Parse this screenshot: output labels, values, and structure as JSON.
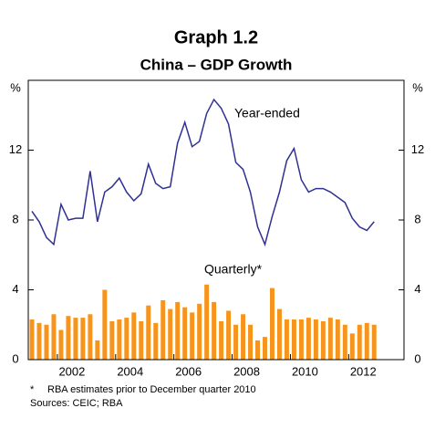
{
  "chart_data": {
    "type": "bar-line",
    "title": "Graph 1.2",
    "subtitle": "China – GDP Growth",
    "y_unit": "%",
    "xlim": [
      2001,
      2013.9
    ],
    "xticks": [
      {
        "value": 2002,
        "label": "2002"
      },
      {
        "value": 2004,
        "label": "2004"
      },
      {
        "value": 2006,
        "label": "2006"
      },
      {
        "value": 2008,
        "label": "2008"
      },
      {
        "value": 2010,
        "label": "2010"
      },
      {
        "value": 2012,
        "label": "2012"
      }
    ],
    "ylim": [
      0,
      16
    ],
    "yticks": [
      0,
      4,
      8,
      12
    ],
    "x": [
      2001.125,
      2001.375,
      2001.625,
      2001.875,
      2002.125,
      2002.375,
      2002.625,
      2002.875,
      2003.125,
      2003.375,
      2003.625,
      2003.875,
      2004.125,
      2004.375,
      2004.625,
      2004.875,
      2005.125,
      2005.375,
      2005.625,
      2005.875,
      2006.125,
      2006.375,
      2006.625,
      2006.875,
      2007.125,
      2007.375,
      2007.625,
      2007.875,
      2008.125,
      2008.375,
      2008.625,
      2008.875,
      2009.125,
      2009.375,
      2009.625,
      2009.875,
      2010.125,
      2010.375,
      2010.625,
      2010.875,
      2011.125,
      2011.375,
      2011.625,
      2011.875,
      2012.125,
      2012.375,
      2012.625,
      2012.875
    ],
    "series": [
      {
        "name": "Year-ended",
        "kind": "line",
        "color": "#2e3192",
        "values": [
          8.5,
          7.9,
          7.0,
          6.6,
          8.9,
          8.0,
          8.1,
          8.1,
          10.8,
          7.9,
          9.6,
          9.9,
          10.4,
          9.6,
          9.1,
          9.5,
          11.2,
          10.1,
          9.8,
          9.9,
          12.4,
          13.6,
          12.2,
          12.5,
          14.1,
          14.9,
          14.4,
          13.5,
          11.3,
          10.9,
          9.6,
          7.6,
          6.6,
          8.2,
          9.6,
          11.4,
          12.1,
          10.3,
          9.6,
          9.8,
          9.8,
          9.6,
          9.3,
          9.0,
          8.1,
          7.6,
          7.4,
          7.9
        ]
      },
      {
        "name": "Quarterly*",
        "kind": "bar",
        "color": "#f7941d",
        "values": [
          2.3,
          2.1,
          2.0,
          2.6,
          1.7,
          2.5,
          2.4,
          2.4,
          2.6,
          1.1,
          4.0,
          2.2,
          2.3,
          2.4,
          2.7,
          2.2,
          3.1,
          2.1,
          3.4,
          2.9,
          3.3,
          3.0,
          2.7,
          3.2,
          4.3,
          3.3,
          2.2,
          2.8,
          2.0,
          2.6,
          2.0,
          1.1,
          1.3,
          4.1,
          2.9,
          2.3,
          2.3,
          2.3,
          2.4,
          2.3,
          2.2,
          2.4,
          2.3,
          2.0,
          1.5,
          2.0,
          2.1,
          2.0
        ]
      }
    ],
    "footnotes": [
      "*",
      "RBA estimates prior to December quarter 2010",
      "Sources: CEIC; RBA"
    ]
  }
}
